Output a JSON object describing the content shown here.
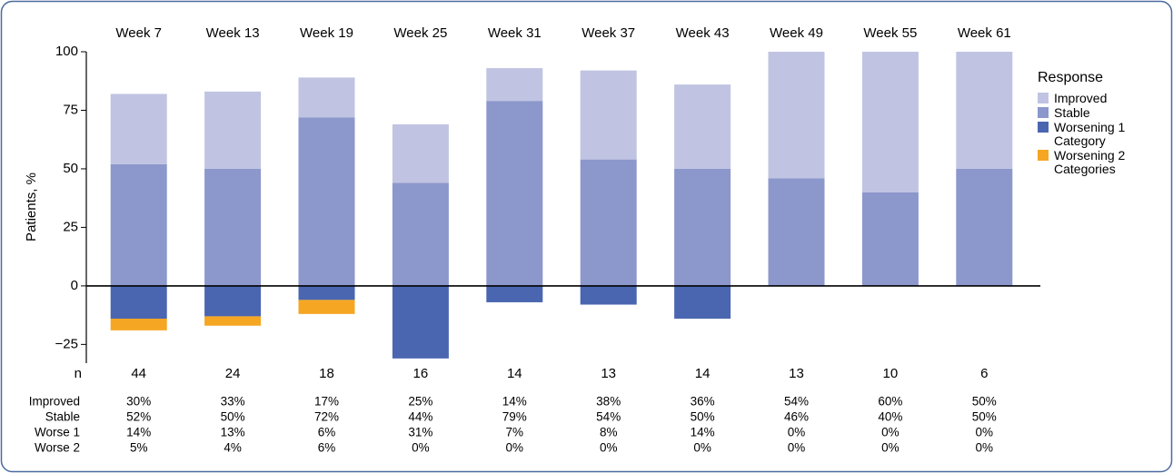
{
  "chart_data": {
    "type": "bar",
    "stacked": true,
    "ylabel": "Patients, %",
    "categories": [
      "Week 7",
      "Week 13",
      "Week 19",
      "Week 25",
      "Week 31",
      "Week 37",
      "Week 43",
      "Week 49",
      "Week 55",
      "Week 61"
    ],
    "series": [
      {
        "name": "Improved",
        "color": "#c0c4e2",
        "values": [
          30,
          33,
          17,
          25,
          14,
          38,
          36,
          54,
          60,
          50
        ]
      },
      {
        "name": "Stable",
        "color": "#8c97cc",
        "values": [
          52,
          50,
          72,
          44,
          79,
          54,
          50,
          46,
          40,
          50
        ]
      },
      {
        "name": "Worsening 1 Category",
        "color": "#4a66b0",
        "values": [
          -14,
          -13,
          -6,
          -31,
          -7,
          -8,
          -14,
          0,
          0,
          0
        ]
      },
      {
        "name": "Worsening 2 Categories",
        "color": "#f5a623",
        "values": [
          -5,
          -4,
          -6,
          0,
          0,
          0,
          0,
          0,
          0,
          0
        ]
      }
    ],
    "legend_title": "Response",
    "ylim": [
      -33,
      100
    ],
    "yticks": [
      {
        "value": -25,
        "label": "−25"
      },
      0,
      25,
      50,
      75,
      100
    ],
    "table": {
      "n_label": "n",
      "n": [
        44,
        24,
        18,
        16,
        14,
        13,
        14,
        13,
        10,
        6
      ],
      "row_labels": [
        "Improved",
        "Stable",
        "Worse 1",
        "Worse 2"
      ],
      "rows": [
        [
          "30%",
          "33%",
          "17%",
          "25%",
          "14%",
          "38%",
          "36%",
          "54%",
          "60%",
          "50%"
        ],
        [
          "52%",
          "50%",
          "72%",
          "44%",
          "79%",
          "54%",
          "50%",
          "46%",
          "40%",
          "50%"
        ],
        [
          "14%",
          "13%",
          "6%",
          "31%",
          "7%",
          "8%",
          "14%",
          "0%",
          "0%",
          "0%"
        ],
        [
          "5%",
          "4%",
          "6%",
          "0%",
          "0%",
          "0%",
          "0%",
          "0%",
          "0%",
          "0%"
        ]
      ]
    }
  }
}
